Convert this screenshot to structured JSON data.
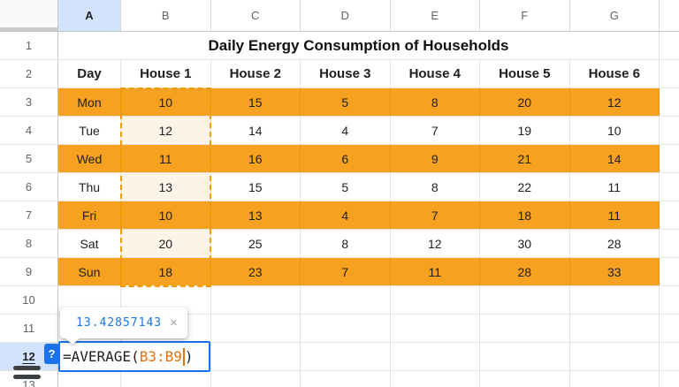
{
  "colors": {
    "row_highlight_orange": "#F6A120",
    "range_tint": "#FDF3E7",
    "range_dash": "#F29B00",
    "accent_blue": "#1A73E8",
    "selected_header_bg": "#D3E3FD",
    "formula_range_text": "#E8710A",
    "gridline": "#E2E3E3"
  },
  "column_letters": [
    "",
    "A",
    "B",
    "C",
    "D",
    "E",
    "F",
    "G",
    ""
  ],
  "row_numbers": [
    "1",
    "2",
    "3",
    "4",
    "5",
    "6",
    "7",
    "8",
    "9",
    "10",
    "11",
    "12",
    "13"
  ],
  "selected_column": "A",
  "selected_row": "12",
  "spreadsheet": {
    "title": "Daily Energy Consumption of Households",
    "table_headers": [
      "Day",
      "House 1",
      "House 2",
      "House 3",
      "House 4",
      "House 5",
      "House 6"
    ],
    "rows": [
      {
        "row": "3",
        "day": "Mon",
        "values": [
          "10",
          "15",
          "5",
          "8",
          "20",
          "12"
        ],
        "highlighted": true
      },
      {
        "row": "4",
        "day": "Tue",
        "values": [
          "12",
          "14",
          "4",
          "7",
          "19",
          "10"
        ],
        "highlighted": false
      },
      {
        "row": "5",
        "day": "Wed",
        "values": [
          "11",
          "16",
          "6",
          "9",
          "21",
          "14"
        ],
        "highlighted": true
      },
      {
        "row": "6",
        "day": "Thu",
        "values": [
          "13",
          "15",
          "5",
          "8",
          "22",
          "11"
        ],
        "highlighted": false
      },
      {
        "row": "7",
        "day": "Fri",
        "values": [
          "10",
          "13",
          "4",
          "7",
          "18",
          "11"
        ],
        "highlighted": true
      },
      {
        "row": "8",
        "day": "Sat",
        "values": [
          "20",
          "25",
          "8",
          "12",
          "30",
          "28"
        ],
        "highlighted": false
      },
      {
        "row": "9",
        "day": "Sun",
        "values": [
          "18",
          "23",
          "7",
          "11",
          "28",
          "33"
        ],
        "highlighted": true
      }
    ]
  },
  "formula_editor": {
    "text_prefix": "=AVERAGE(",
    "range_ref": "B3:B9",
    "text_suffix": ")"
  },
  "result_preview": {
    "value": "13.42857143",
    "close_icon": "×"
  },
  "help_button_label": "?"
}
